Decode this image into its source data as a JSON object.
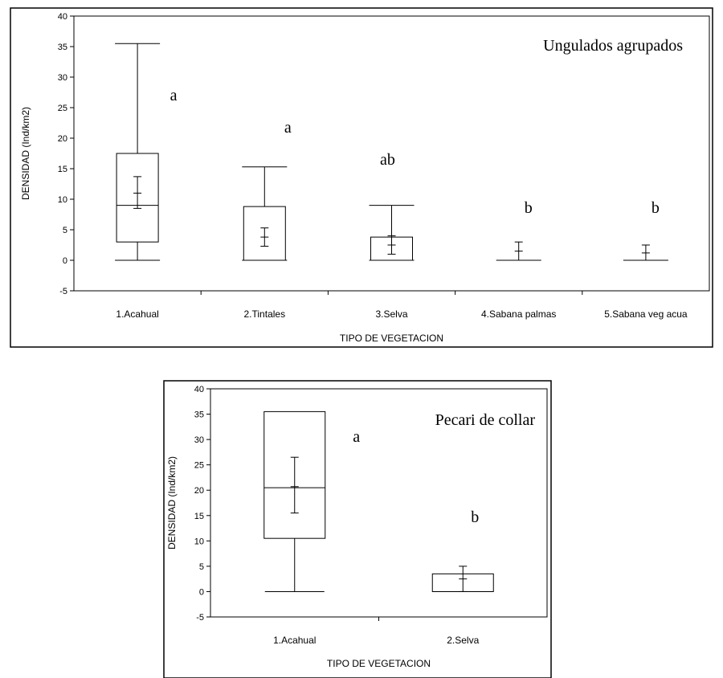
{
  "chart_data": [
    {
      "type": "box",
      "title": "Ungulados agrupados",
      "xlabel": "TIPO DE VEGETACION",
      "ylabel": "DENSIDAD (Ind/km2)",
      "ylim": [
        -5,
        40
      ],
      "yticks": [
        -5,
        0,
        5,
        10,
        15,
        20,
        25,
        30,
        35,
        40
      ],
      "categories": [
        "1.Acahual",
        "2.Tintales",
        "3.Selva",
        "4.Sabana palmas",
        "5.Sabana veg acua"
      ],
      "boxes": [
        {
          "min": 0,
          "q1": 3,
          "median": 9,
          "q3": 17.5,
          "max": 35.5,
          "mean": 11,
          "mean_low": 8.5,
          "mean_high": 13.7,
          "letter": "a"
        },
        {
          "min": 0,
          "q1": 0,
          "median": 0,
          "q3": 8.8,
          "max": 15.3,
          "mean": 3.8,
          "mean_low": 2.3,
          "mean_high": 5.3,
          "letter": "a"
        },
        {
          "min": 0,
          "q1": 0,
          "median": 0,
          "q3": 3.8,
          "max": 9,
          "mean": 2.5,
          "mean_low": 1,
          "mean_high": 4,
          "letter": "ab"
        },
        {
          "min": 0,
          "q1": 0,
          "median": 0,
          "q3": 0,
          "max": 0,
          "mean": 1.5,
          "mean_low": 0,
          "mean_high": 3,
          "letter": "b"
        },
        {
          "min": 0,
          "q1": 0,
          "median": 0,
          "q3": 0,
          "max": 0,
          "mean": 1.2,
          "mean_low": 0,
          "mean_high": 2.5,
          "letter": "b"
        }
      ]
    },
    {
      "type": "box",
      "title": "Pecari de collar",
      "xlabel": "TIPO DE VEGETACION",
      "ylabel": "DENSIDAD (Ind/km2)",
      "ylim": [
        -5,
        40
      ],
      "yticks": [
        -5,
        0,
        5,
        10,
        15,
        20,
        25,
        30,
        35,
        40
      ],
      "categories": [
        "1.Acahual",
        "2.Selva"
      ],
      "boxes": [
        {
          "min": 0,
          "q1": 10.5,
          "median": 20.5,
          "q3": 35.5,
          "max": 35.5,
          "mean": 20.7,
          "mean_low": 15.5,
          "mean_high": 26.5,
          "letter": "a"
        },
        {
          "min": 0,
          "q1": 0,
          "median": 0,
          "q3": 3.5,
          "max": 3.5,
          "mean": 2.5,
          "mean_low": 0,
          "mean_high": 5,
          "letter": "b"
        }
      ]
    }
  ]
}
